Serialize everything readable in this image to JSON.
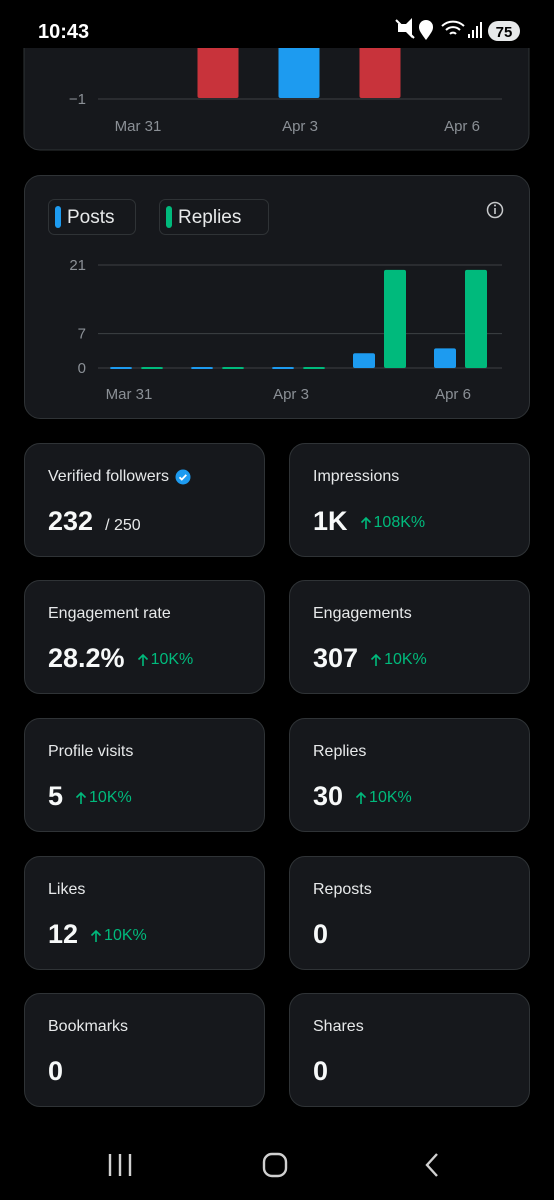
{
  "status_bar": {
    "time": "10:43",
    "battery": "75"
  },
  "charts": [
    {
      "type": "bar",
      "categories": [
        "Mar 31",
        null,
        "Apr 3",
        null,
        "Apr 6"
      ],
      "ylim": [
        -1,
        0
      ],
      "yticks": [
        {
          "value": -1,
          "label": "−1"
        }
      ],
      "series": [
        {
          "color": "#1d9bf0",
          "values": [
            null,
            null,
            -1,
            0,
            0
          ]
        },
        {
          "color": "#c8333b",
          "values": [
            null,
            -1,
            null,
            -1,
            null
          ]
        }
      ]
    },
    {
      "type": "bar",
      "categories": [
        "Mar 31",
        null,
        "Apr 3",
        null,
        "Apr 6"
      ],
      "ylim": [
        0,
        21
      ],
      "yticks": [
        0,
        7,
        21
      ],
      "grid": true,
      "series": [
        {
          "name": "Posts",
          "color": "#1d9bf0",
          "values": [
            0,
            0,
            0,
            3,
            4
          ]
        },
        {
          "name": "Replies",
          "color": "#00ba7c",
          "values": [
            0,
            0,
            0,
            20,
            20
          ]
        }
      ]
    }
  ],
  "metrics": [
    {
      "label": "Verified followers",
      "value": "232",
      "suffix": "/ 250",
      "verified": true
    },
    {
      "label": "Impressions",
      "value": "1K",
      "change": "108K%"
    },
    {
      "label": "Engagement rate",
      "value": "28.2%",
      "change": "10K%"
    },
    {
      "label": "Engagements",
      "value": "307",
      "change": "10K%"
    },
    {
      "label": "Profile visits",
      "value": "5",
      "change": "10K%"
    },
    {
      "label": "Replies",
      "value": "30",
      "change": "10K%"
    },
    {
      "label": "Likes",
      "value": "12",
      "change": "10K%"
    },
    {
      "label": "Reposts",
      "value": "0"
    },
    {
      "label": "Bookmarks",
      "value": "0"
    },
    {
      "label": "Shares",
      "value": "0"
    }
  ]
}
